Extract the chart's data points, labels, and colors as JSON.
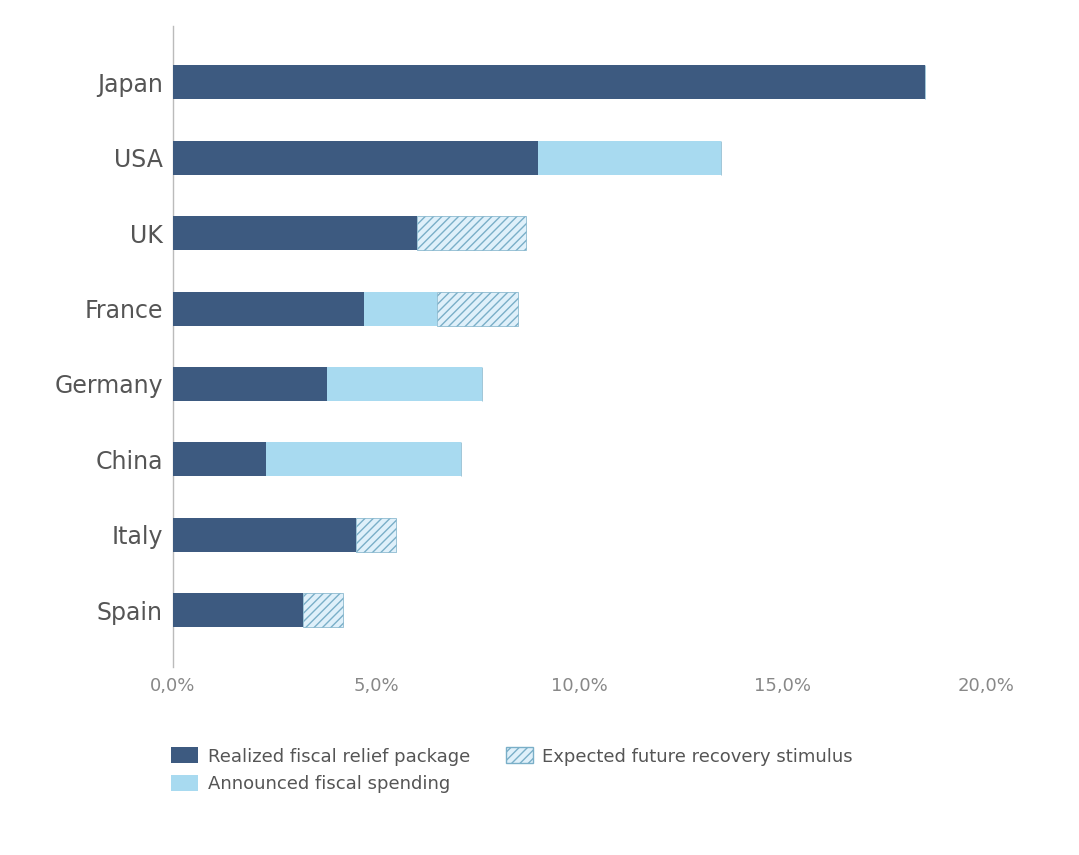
{
  "countries": [
    "Japan",
    "USA",
    "UK",
    "France",
    "Germany",
    "China",
    "Italy",
    "Spain"
  ],
  "realized": [
    18.5,
    9.0,
    6.0,
    4.7,
    3.8,
    2.3,
    4.5,
    3.2
  ],
  "announced": [
    0.0,
    4.5,
    0.0,
    1.8,
    3.8,
    4.8,
    0.0,
    0.0
  ],
  "expected": [
    0.0,
    0.0,
    2.7,
    2.0,
    0.0,
    0.0,
    1.0,
    1.0
  ],
  "color_realized": "#3d5a80",
  "color_announced": "#a8daf0",
  "color_expected_face": "#dff0fa",
  "color_expected_hatch": "#7aafc8",
  "xlim": [
    0,
    21.5
  ],
  "xticks": [
    0,
    5,
    10,
    15,
    20
  ],
  "xtick_labels": [
    "0,0%",
    "5,0%",
    "10,0%",
    "15,0%",
    "20,0%"
  ],
  "background_color": "#ffffff",
  "bar_height": 0.45,
  "fontsize_labels": 17,
  "fontsize_ticks": 13,
  "fontsize_legend": 13,
  "legend_labels": [
    "Realized fiscal relief package",
    "Announced fiscal spending",
    "Expected future recovery stimulus"
  ]
}
